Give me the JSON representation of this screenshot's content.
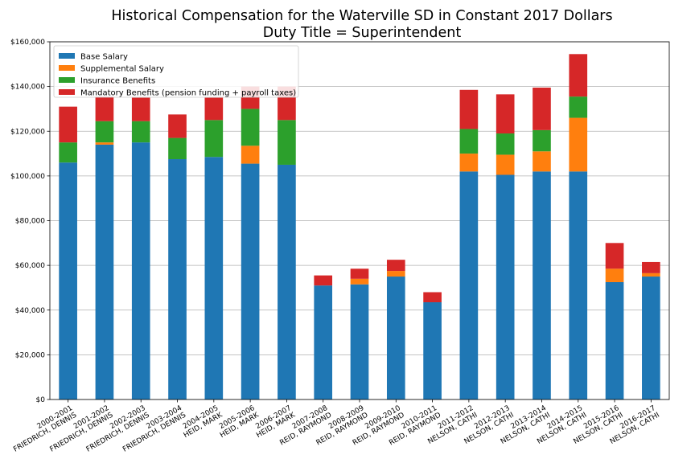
{
  "chart_data": {
    "type": "bar",
    "stacked": true,
    "title": "Historical Compensation for the Waterville SD in Constant 2017 Dollars",
    "subtitle": "Duty Title = Superintendent",
    "xlabel": "",
    "ylabel": "",
    "ylim": [
      0,
      160000
    ],
    "yticks": [
      0,
      20000,
      40000,
      60000,
      80000,
      100000,
      120000,
      140000,
      160000
    ],
    "ytick_labels": [
      "$0",
      "$20,000",
      "$40,000",
      "$60,000",
      "$80,000",
      "$100,000",
      "$120,000",
      "$140,000",
      "$160,000"
    ],
    "grid": "horizontal",
    "legend_position": "top-left",
    "categories": [
      [
        "2000-2001",
        "FRIEDRICH, DENNIS"
      ],
      [
        "2001-2002",
        "FRIEDRICH, DENNIS"
      ],
      [
        "2002-2003",
        "FRIEDRICH, DENNIS"
      ],
      [
        "2003-2004",
        "FRIEDRICH, DENNIS"
      ],
      [
        "2004-2005",
        "HEID, MARK"
      ],
      [
        "2005-2006",
        "HEID, MARK"
      ],
      [
        "2006-2007",
        "HEID, MARK"
      ],
      [
        "2007-2008",
        "REID, RAYMOND"
      ],
      [
        "2008-2009",
        "REID, RAYMOND"
      ],
      [
        "2009-2010",
        "REID, RAYMOND"
      ],
      [
        "2010-2011",
        "REID, RAYMOND"
      ],
      [
        "2011-2012",
        "NELSON, CATHI"
      ],
      [
        "2012-2013",
        "NELSON, CATHI"
      ],
      [
        "2013-2014",
        "NELSON, CATHI"
      ],
      [
        "2014-2015",
        "NELSON, CATHI"
      ],
      [
        "2015-2016",
        "NELSON, CATHI"
      ],
      [
        "2016-2017",
        "NELSON, CATHI"
      ]
    ],
    "series": [
      {
        "name": "Base Salary",
        "color": "#1f77b4",
        "values": [
          106000,
          114000,
          115000,
          107500,
          108500,
          105500,
          105000,
          51000,
          51500,
          55000,
          43500,
          102000,
          100500,
          102000,
          102000,
          52500,
          55000
        ]
      },
      {
        "name": "Supplemental Salary",
        "color": "#ff7f0e",
        "values": [
          0,
          1000,
          0,
          0,
          0,
          8000,
          0,
          0,
          2500,
          2500,
          0,
          8000,
          9000,
          9000,
          24000,
          6000,
          1500
        ]
      },
      {
        "name": "Insurance Benefits",
        "color": "#2ca02c",
        "values": [
          9000,
          9500,
          9500,
          9500,
          16500,
          16500,
          20000,
          0,
          0,
          0,
          0,
          11000,
          9500,
          9500,
          9500,
          0,
          0
        ]
      },
      {
        "name": "Mandatory Benefits (pension funding + payroll taxes)",
        "color": "#d62728",
        "values": [
          16000,
          11000,
          10500,
          10500,
          10000,
          10000,
          15000,
          4500,
          4500,
          5000,
          4500,
          17500,
          17500,
          19000,
          19000,
          11500,
          5000
        ]
      }
    ]
  }
}
